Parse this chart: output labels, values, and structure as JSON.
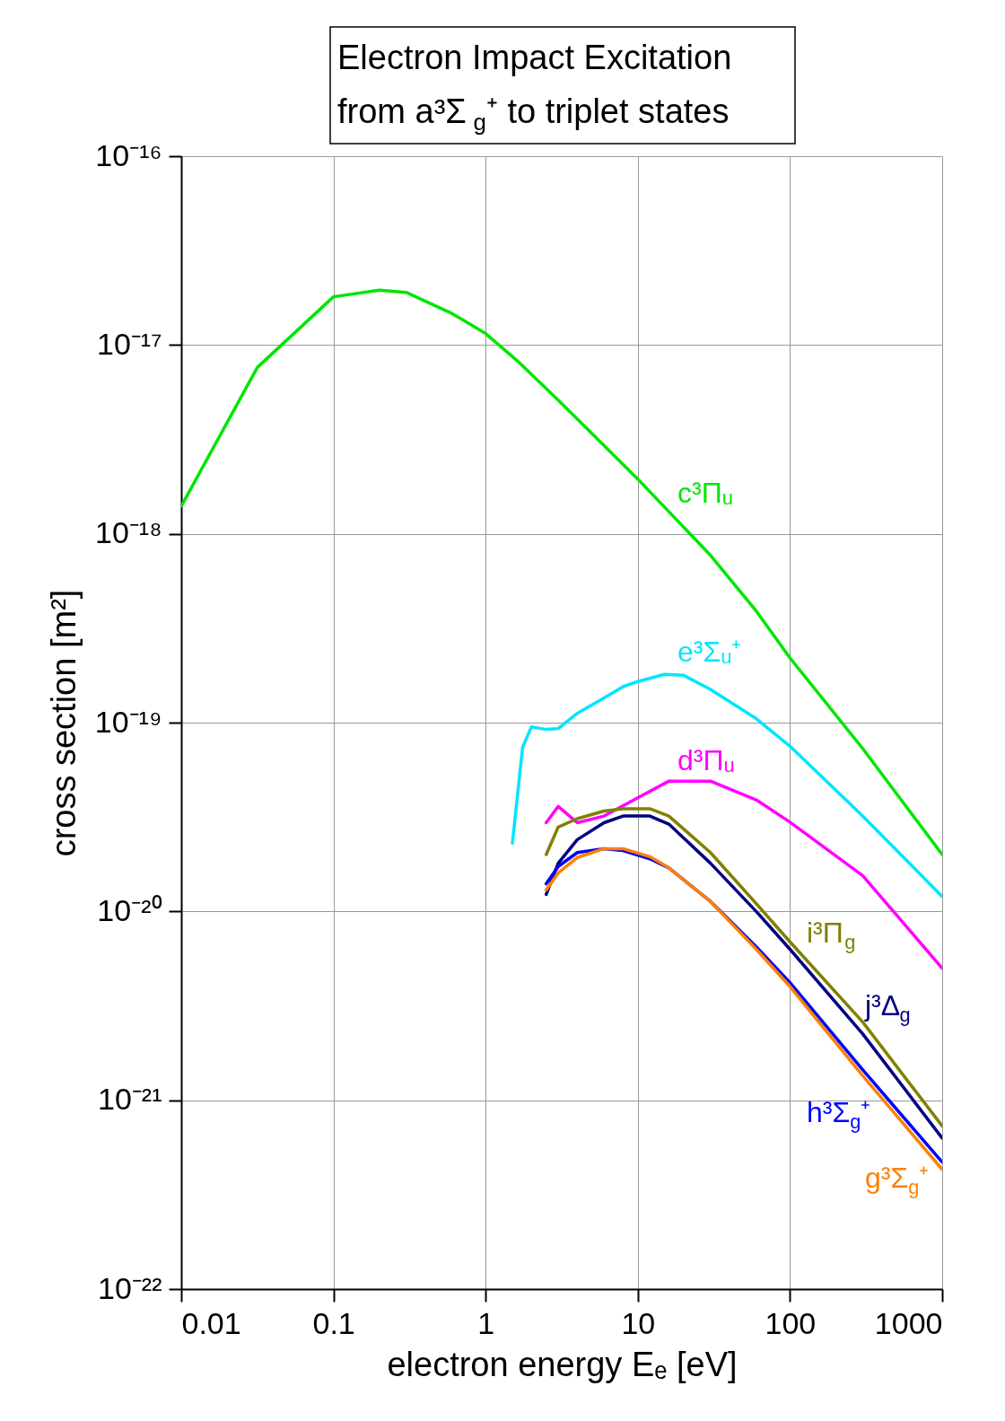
{
  "chart_data": {
    "type": "line",
    "title": "Electron Impact Excitation\nfrom a³Σ$_{g}$⁺ to triplet states",
    "xlabel": "electron energy Eₑ [eV]",
    "ylabel": "cross section [m²]",
    "log": "xy",
    "grid": true,
    "legend": false,
    "line_style": "solid",
    "marker": "none",
    "xlim": [
      0.01,
      1000
    ],
    "xticks": [
      0.01,
      0.1,
      1,
      10,
      100,
      1000
    ],
    "ylim": [
      1e-22,
      1e-16
    ],
    "yticks": [
      {
        "value": 1e-22,
        "label": "10⁻²²"
      },
      {
        "value": 1e-21,
        "label": "10⁻²¹"
      },
      {
        "value": 1e-20,
        "label": "10⁻²⁰"
      },
      {
        "value": 1e-19,
        "label": "10⁻¹⁹"
      },
      {
        "value": 1e-18,
        "label": "10⁻¹⁸"
      },
      {
        "value": 1e-17,
        "label": "10⁻¹⁷"
      },
      {
        "value": 1e-16,
        "label": "10⁻¹⁶"
      }
    ],
    "series": [
      {
        "name": "c³Πᵤ",
        "color": "#00e600",
        "x": [
          0.01,
          0.0316,
          0.1,
          0.2,
          0.3,
          0.6,
          1,
          1.6,
          3,
          10,
          30,
          60,
          100,
          300,
          1000
        ],
        "values": [
          1.4e-18,
          7.6e-18,
          1.8e-17,
          1.95e-17,
          1.9e-17,
          1.47e-17,
          1.15e-17,
          8.3e-18,
          5.1e-18,
          1.95e-18,
          7.7e-19,
          3.9e-19,
          2.2e-19,
          7.3e-20,
          2e-20
        ]
      },
      {
        "name": "e³Σᵤ⁺",
        "color": "#00e5ff",
        "x": [
          1.5,
          1.75,
          2,
          2.5,
          3,
          4,
          6,
          8,
          10,
          15,
          20,
          30,
          60,
          100,
          300,
          1000
        ],
        "values": [
          2.3e-20,
          7.4e-20,
          9.5e-20,
          9.2e-20,
          9.3e-20,
          1.12e-19,
          1.35e-19,
          1.55e-19,
          1.65e-19,
          1.8e-19,
          1.78e-19,
          1.5e-19,
          1.05e-19,
          7.5e-20,
          3.2e-20,
          1.2e-20
        ]
      },
      {
        "name": "d³Πᵤ",
        "color": "#ff00ff",
        "x": [
          2.5,
          3,
          4,
          6,
          10,
          16,
          30,
          60,
          100,
          300,
          1000
        ],
        "values": [
          2.95e-20,
          3.6e-20,
          2.95e-20,
          3.2e-20,
          4e-20,
          4.9e-20,
          4.9e-20,
          3.9e-20,
          2.97e-20,
          1.55e-20,
          5e-21
        ]
      },
      {
        "name": "i³Π$_{g}$",
        "color": "#808000",
        "x": [
          2.5,
          3,
          4,
          6,
          8,
          12,
          16,
          30,
          60,
          100,
          300,
          1000
        ],
        "values": [
          2e-20,
          2.8e-20,
          3.1e-20,
          3.4e-20,
          3.5e-20,
          3.5e-20,
          3.2e-20,
          2.05e-20,
          1.1e-20,
          6.9e-21,
          2.6e-21,
          7.3e-22
        ]
      },
      {
        "name": "j³Δ$_{g}$",
        "color": "#000080",
        "x": [
          2.5,
          3,
          4,
          6,
          8,
          12,
          16,
          30,
          60,
          100,
          300,
          1000
        ],
        "values": [
          1.23e-20,
          1.8e-20,
          2.4e-20,
          2.95e-20,
          3.2e-20,
          3.2e-20,
          2.9e-20,
          1.8e-20,
          1e-20,
          6.3e-21,
          2.25e-21,
          6.3e-22
        ]
      },
      {
        "name": "h³Σ$_{g}$⁺",
        "color": "#0000ff",
        "x": [
          2.5,
          3,
          4,
          6,
          8,
          12,
          16,
          30,
          60,
          100,
          300,
          1000
        ],
        "values": [
          1.4e-20,
          1.73e-20,
          2.05e-20,
          2.15e-20,
          2.1e-20,
          1.9e-20,
          1.7e-20,
          1.13e-20,
          6.5e-21,
          4.2e-21,
          1.45e-21,
          4.7e-22
        ]
      },
      {
        "name": "g³Σ$_{g}$⁺",
        "color": "#ff8000",
        "x": [
          2.5,
          3,
          4,
          6,
          8,
          12,
          16,
          30,
          60,
          100,
          300,
          1000
        ],
        "values": [
          1.3e-20,
          1.6e-20,
          1.93e-20,
          2.15e-20,
          2.15e-20,
          1.95e-20,
          1.7e-20,
          1.13e-20,
          6.3e-21,
          4e-21,
          1.35e-21,
          4.3e-22
        ]
      }
    ]
  }
}
